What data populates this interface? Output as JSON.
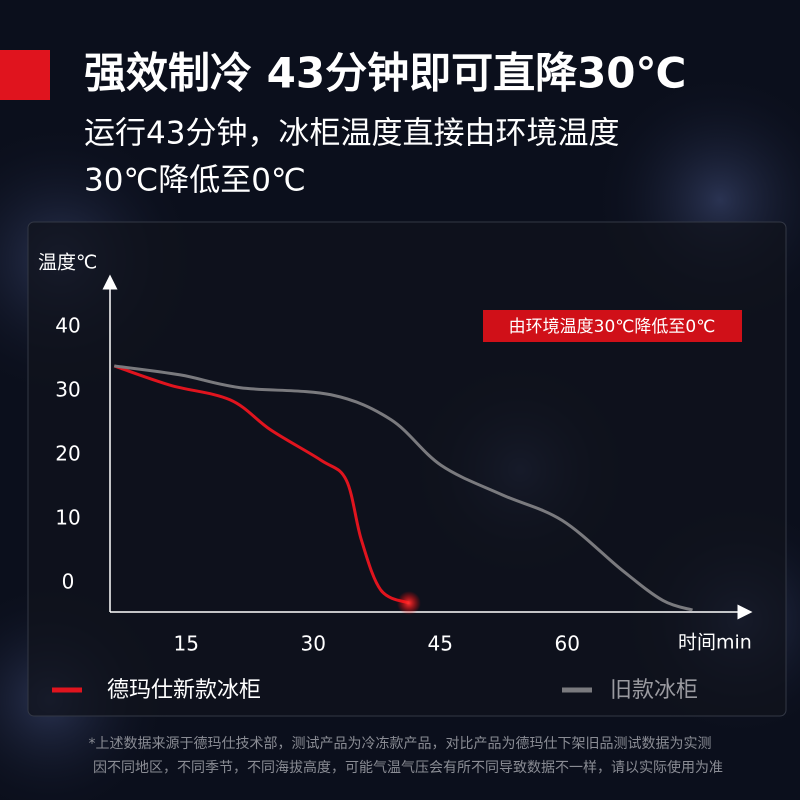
{
  "chart_data": {
    "type": "line",
    "title": "强效制冷 43分钟即可直降30℃",
    "subtitle": [
      "运行43分钟，冰柜温度直接由环境温度",
      "30℃降低至0℃"
    ],
    "annotation": "由环境温度30℃降低至0℃",
    "y_label": "温度℃",
    "x_label": "时间min",
    "xlim": [
      6,
      81
    ],
    "xticks": [
      15,
      30,
      45,
      60
    ],
    "ylim": [
      -4.5,
      47
    ],
    "yticks": [
      0,
      10,
      20,
      30,
      40
    ],
    "series": [
      {
        "name": "德玛仕新款冰柜",
        "color": "#e0141e",
        "x": [
          6.5,
          13.1,
          20.2,
          25,
          30.9,
          33.9,
          35.7,
          38,
          41.3
        ],
        "values": [
          33.9,
          30.9,
          28.6,
          23.9,
          19.2,
          16.1,
          6.7,
          -1.1,
          -3.1
        ]
      },
      {
        "name": "旧款冰柜",
        "color": "#7a7a7e",
        "x": [
          6.5,
          14.3,
          21.4,
          32.1,
          39.2,
          45.1,
          52.3,
          59.4,
          66.5,
          71.3,
          74.8
        ],
        "values": [
          33.9,
          32.5,
          30.5,
          29.4,
          25.5,
          18.4,
          13.8,
          9.8,
          2,
          -2.7,
          -4.2
        ]
      }
    ],
    "footnote": [
      "*上述数据来源于德玛仕技术部，测试产品为冷冻款产品，对比产品为德玛仕下架旧品测试数据为实测",
      "因不同地区，不同季节，不同海拔高度，可能气温气压会有所不同导致数据不一样，请以实际使用为准"
    ]
  }
}
